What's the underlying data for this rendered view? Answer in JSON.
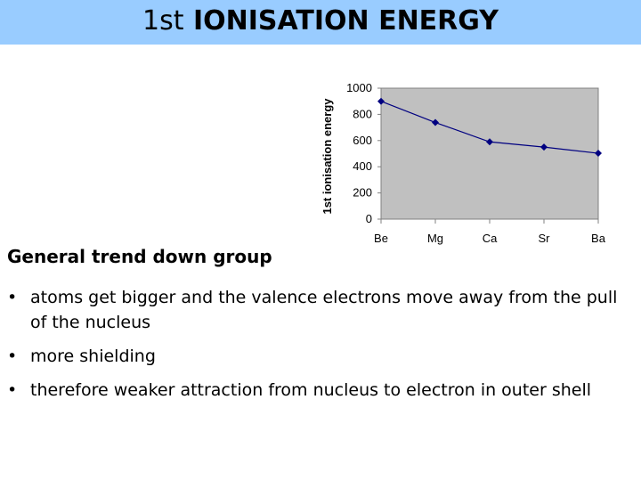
{
  "slide": {
    "title_prefix": "1st",
    "title_main": "IONISATION ENERGY",
    "subheading": "General trend down group",
    "bullets": [
      "atoms get bigger and the valence electrons move away from the pull of the nucleus",
      "more shielding",
      "therefore weaker attraction from nucleus to electron in outer shell"
    ]
  },
  "chart_data": {
    "type": "line",
    "categories": [
      "Be",
      "Mg",
      "Ca",
      "Sr",
      "Ba"
    ],
    "values": [
      900,
      738,
      590,
      550,
      503
    ],
    "title": "",
    "xlabel": "",
    "ylabel": "1st ionisation energy",
    "ylim": [
      0,
      1000
    ],
    "yticks": [
      "0",
      "200",
      "400",
      "600",
      "800",
      "1000"
    ],
    "grid": false,
    "legend": "none",
    "colors": {
      "plot_bg": "#c0c0c0",
      "line": "#000080",
      "marker": "#000080"
    }
  }
}
